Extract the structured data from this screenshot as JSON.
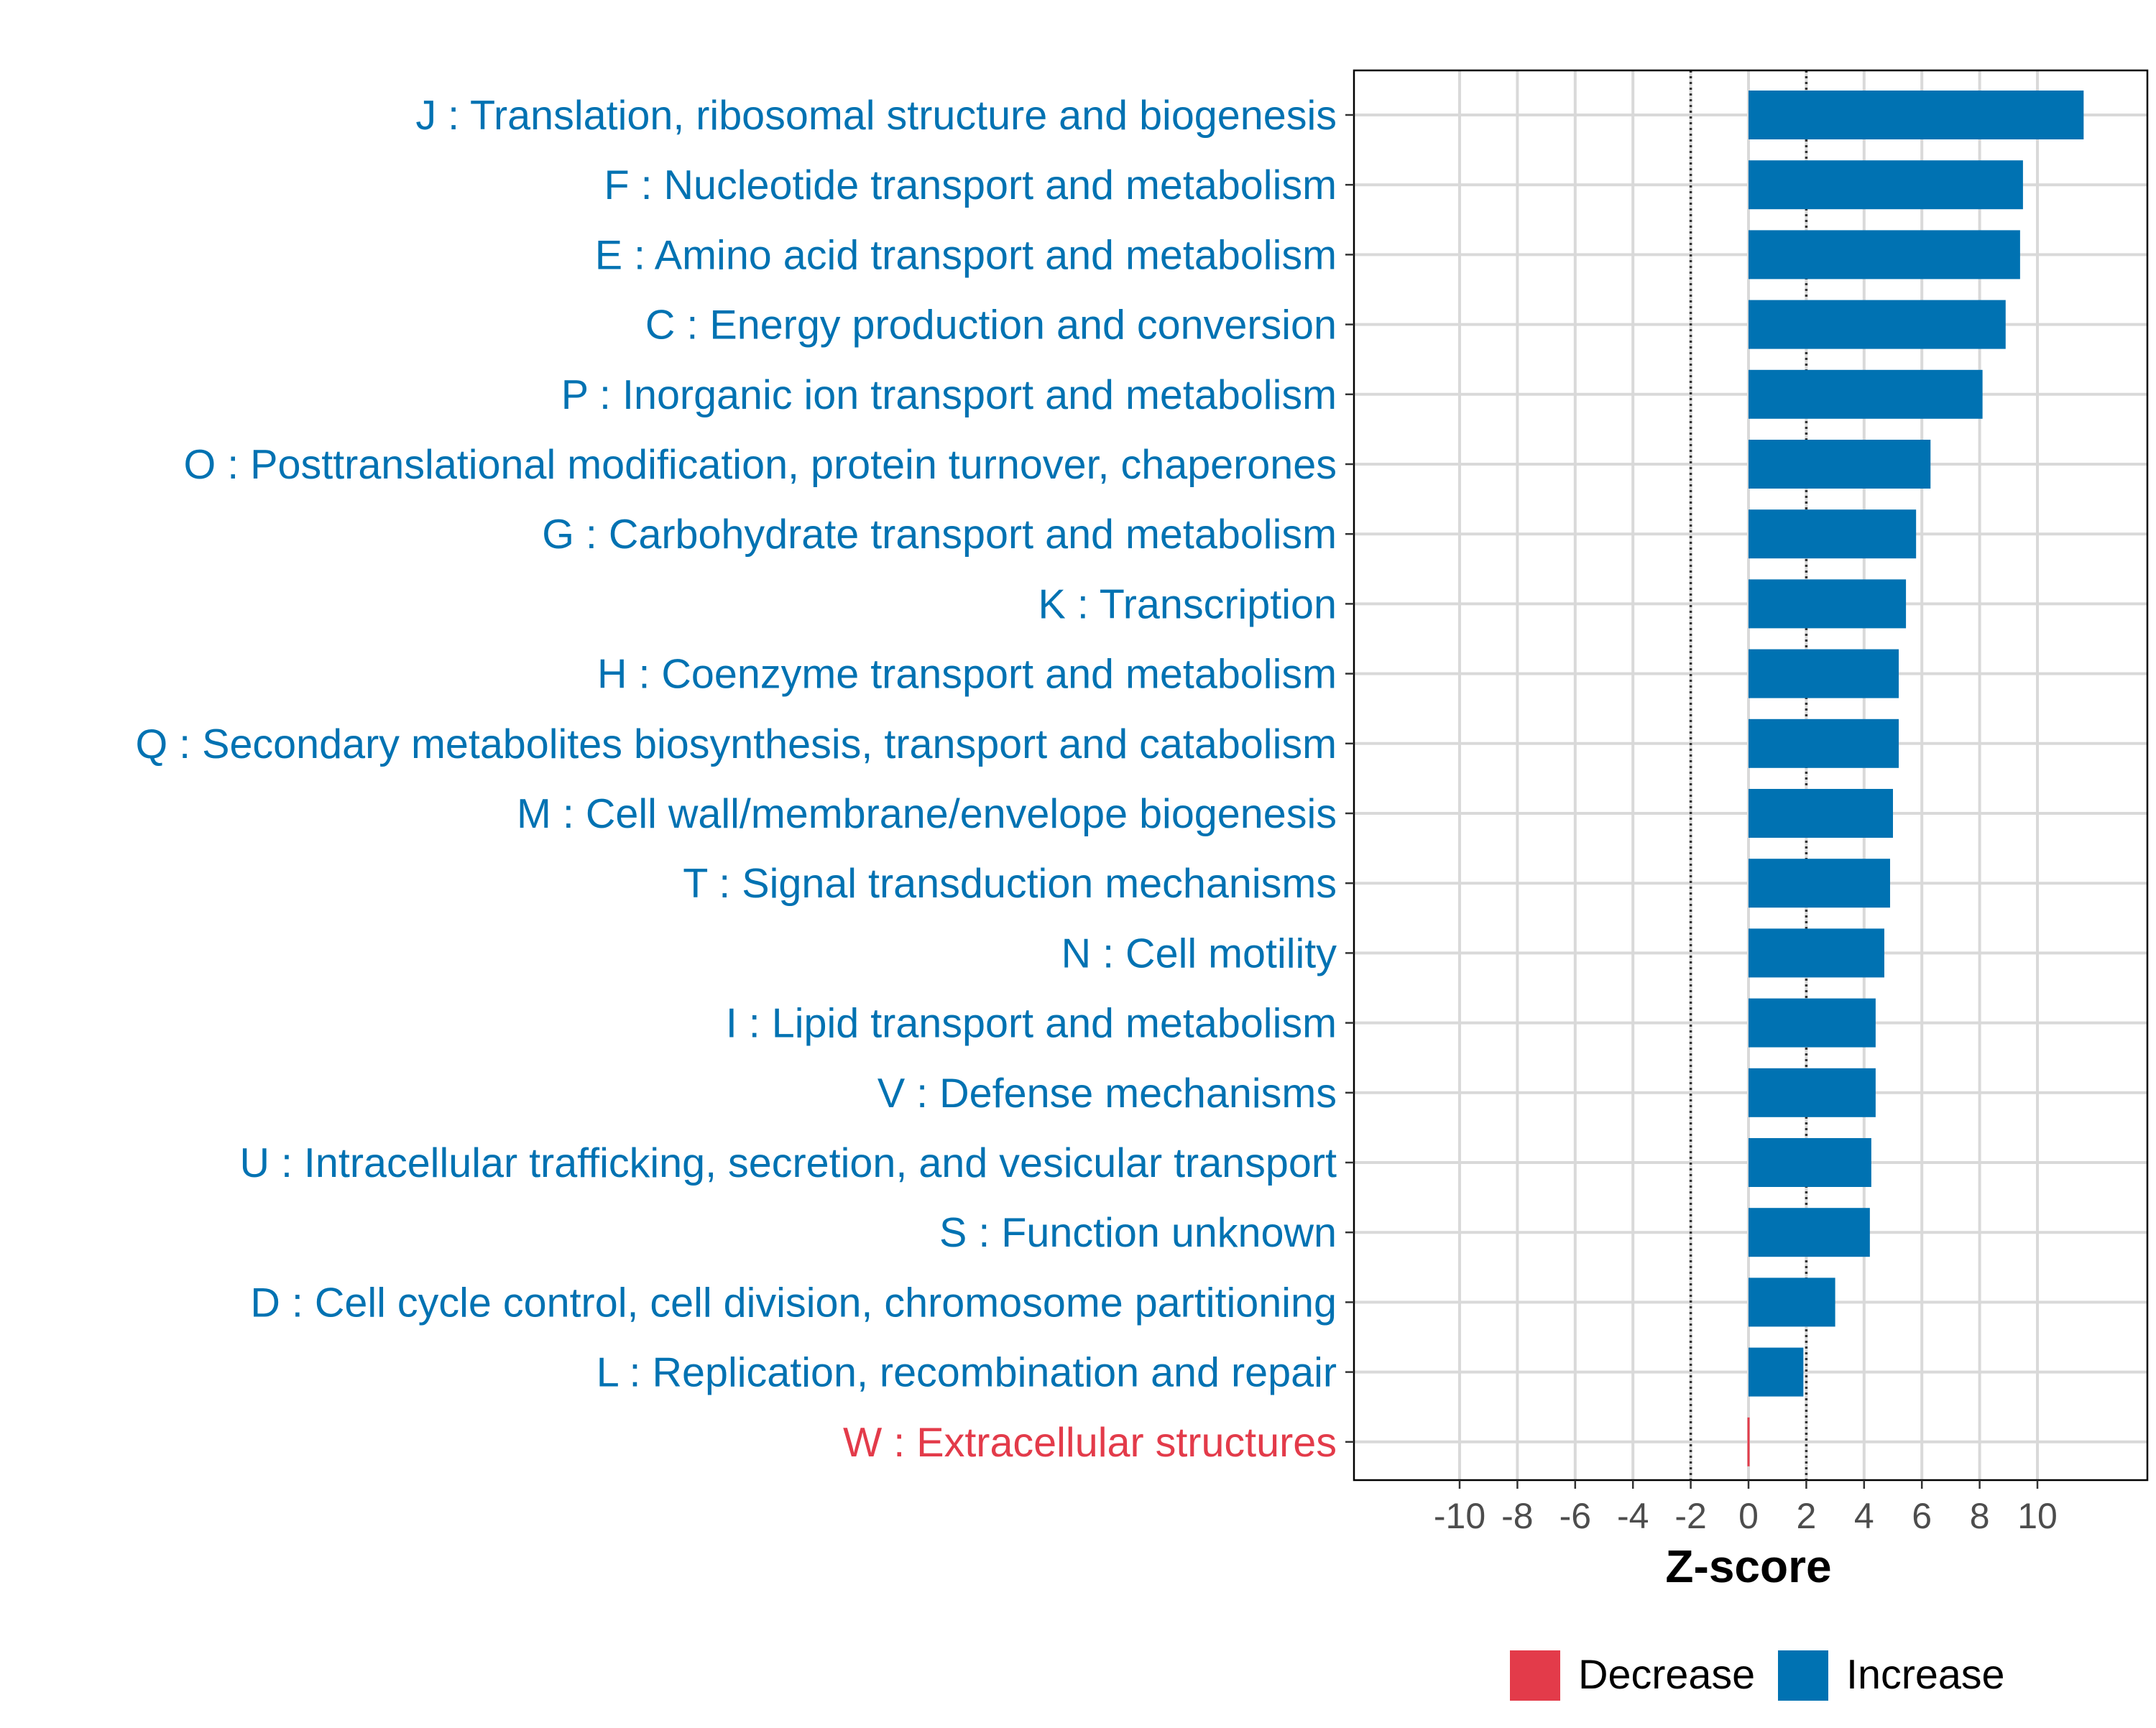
{
  "chart_data": {
    "type": "bar",
    "orientation": "horizontal",
    "xlabel": "Z-score",
    "ylabel": "",
    "xlim": [
      -14,
      14
    ],
    "x_ticks": [
      -10,
      -8,
      -6,
      -4,
      -2,
      0,
      2,
      4,
      6,
      8,
      10
    ],
    "grid": true,
    "threshold_lines": [
      -2,
      2
    ],
    "colors": {
      "Increase": "#0072B2",
      "Decrease": "#E33B4A",
      "grid": "#D9D9D9",
      "axis": "#000000",
      "tick_label": "#4D4D4D"
    },
    "legend": {
      "position": "bottom",
      "entries": [
        {
          "label": "Decrease",
          "color": "#E33B4A"
        },
        {
          "label": "Increase",
          "color": "#0072B2"
        }
      ]
    },
    "categories": [
      {
        "label": "J : Translation, ribosomal structure and biogenesis",
        "value": 11.6,
        "direction": "Increase"
      },
      {
        "label": "F : Nucleotide transport and metabolism",
        "value": 9.5,
        "direction": "Increase"
      },
      {
        "label": "E : Amino acid transport and metabolism",
        "value": 9.4,
        "direction": "Increase"
      },
      {
        "label": "C : Energy production and conversion",
        "value": 8.9,
        "direction": "Increase"
      },
      {
        "label": "P : Inorganic ion transport and metabolism",
        "value": 8.1,
        "direction": "Increase"
      },
      {
        "label": "O : Posttranslational modification, protein turnover, chaperones",
        "value": 6.3,
        "direction": "Increase"
      },
      {
        "label": "G : Carbohydrate transport and metabolism",
        "value": 5.8,
        "direction": "Increase"
      },
      {
        "label": "K : Transcription",
        "value": 5.45,
        "direction": "Increase"
      },
      {
        "label": "H : Coenzyme transport and metabolism",
        "value": 5.2,
        "direction": "Increase"
      },
      {
        "label": "Q : Secondary metabolites biosynthesis, transport and catabolism",
        "value": 5.2,
        "direction": "Increase"
      },
      {
        "label": "M : Cell wall/membrane/envelope biogenesis",
        "value": 5.0,
        "direction": "Increase"
      },
      {
        "label": "T : Signal transduction mechanisms",
        "value": 4.9,
        "direction": "Increase"
      },
      {
        "label": "N : Cell motility",
        "value": 4.7,
        "direction": "Increase"
      },
      {
        "label": "I : Lipid transport and metabolism",
        "value": 4.4,
        "direction": "Increase"
      },
      {
        "label": "V : Defense mechanisms",
        "value": 4.4,
        "direction": "Increase"
      },
      {
        "label": "U : Intracellular trafficking, secretion, and vesicular transport",
        "value": 4.25,
        "direction": "Increase"
      },
      {
        "label": "S : Function unknown",
        "value": 4.2,
        "direction": "Increase"
      },
      {
        "label": "D : Cell cycle control, cell division, chromosome partitioning",
        "value": 3.0,
        "direction": "Increase"
      },
      {
        "label": "L : Replication, recombination and repair",
        "value": 1.9,
        "direction": "Increase"
      },
      {
        "label": "W : Extracellular structures",
        "value": -0.05,
        "direction": "Decrease"
      }
    ]
  }
}
